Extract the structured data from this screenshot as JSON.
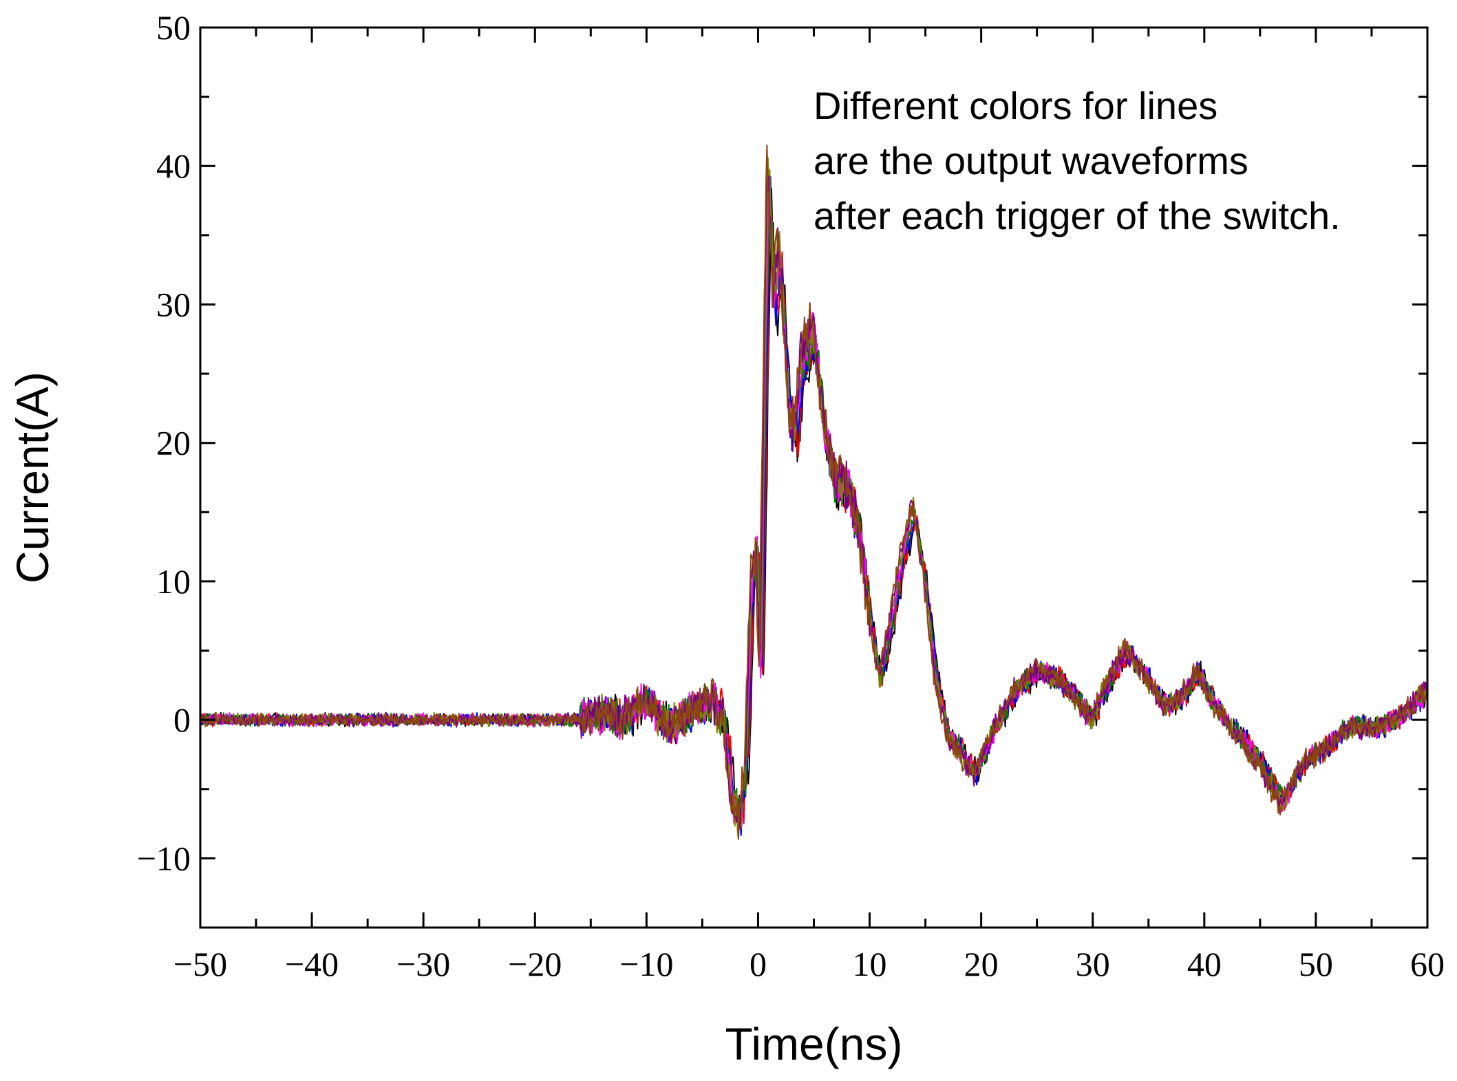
{
  "chart_data": {
    "type": "line",
    "title": "",
    "xlabel": "Time(ns)",
    "ylabel": "Current(A)",
    "xlim": [
      -50,
      60
    ],
    "ylim": [
      -15,
      50
    ],
    "xticks": [
      -50,
      -40,
      -30,
      -20,
      -10,
      0,
      10,
      20,
      30,
      40,
      50,
      60
    ],
    "xtick_labels": [
      "−50",
      "−40",
      "−30",
      "−20",
      "−10",
      "0",
      "10",
      "20",
      "30",
      "40",
      "50",
      "60"
    ],
    "yticks": [
      -10,
      0,
      10,
      20,
      30,
      40,
      50
    ],
    "ytick_labels": [
      "−10",
      "0",
      "10",
      "20",
      "30",
      "40",
      "50"
    ],
    "grid": false,
    "annotation": [
      "Different colors for lines",
      "are the output waveforms",
      "after each trigger of the switch."
    ],
    "series_colors": [
      "#000000",
      "#ff0000",
      "#0000ff",
      "#008000",
      "#ff00ff",
      "#808000",
      "#800080",
      "#8b4513"
    ],
    "base_waveform": {
      "x": [
        -50,
        -16,
        -14,
        -12,
        -10,
        -8,
        -6,
        -4,
        -3,
        -2.2,
        -1.5,
        -1,
        -0.5,
        0,
        0.3,
        0.7,
        1.0,
        1.5,
        2.0,
        2.5,
        3.0,
        3.5,
        4.0,
        5.0,
        6.0,
        7.0,
        8.0,
        9.0,
        10.0,
        11.0,
        12.0,
        13.0,
        14.0,
        15.0,
        16.0,
        17.0,
        18.0,
        19.5,
        21.0,
        23.0,
        25.0,
        27.0,
        28.0,
        30.0,
        31.0,
        33.0,
        35.0,
        36.5,
        38.0,
        39.5,
        41.0,
        43.0,
        45.0,
        47.0,
        49.0,
        51.0,
        53.0,
        56.0,
        58.0,
        60.0
      ],
      "y": [
        0,
        0,
        0.5,
        0,
        1.5,
        -0.5,
        0.5,
        1.5,
        0,
        -6,
        -7,
        -3,
        10,
        12,
        3,
        25,
        40,
        30,
        34,
        27,
        21,
        21,
        26,
        28,
        21,
        17,
        17,
        14,
        8,
        3,
        7,
        12,
        15,
        10,
        3,
        -1,
        -2,
        -4,
        -1,
        2,
        3.5,
        3,
        2,
        0,
        2,
        5,
        3,
        1,
        1.5,
        3.5,
        1,
        -1,
        -3,
        -6,
        -3,
        -2,
        -0.5,
        -0.5,
        0.5,
        2
      ]
    }
  }
}
